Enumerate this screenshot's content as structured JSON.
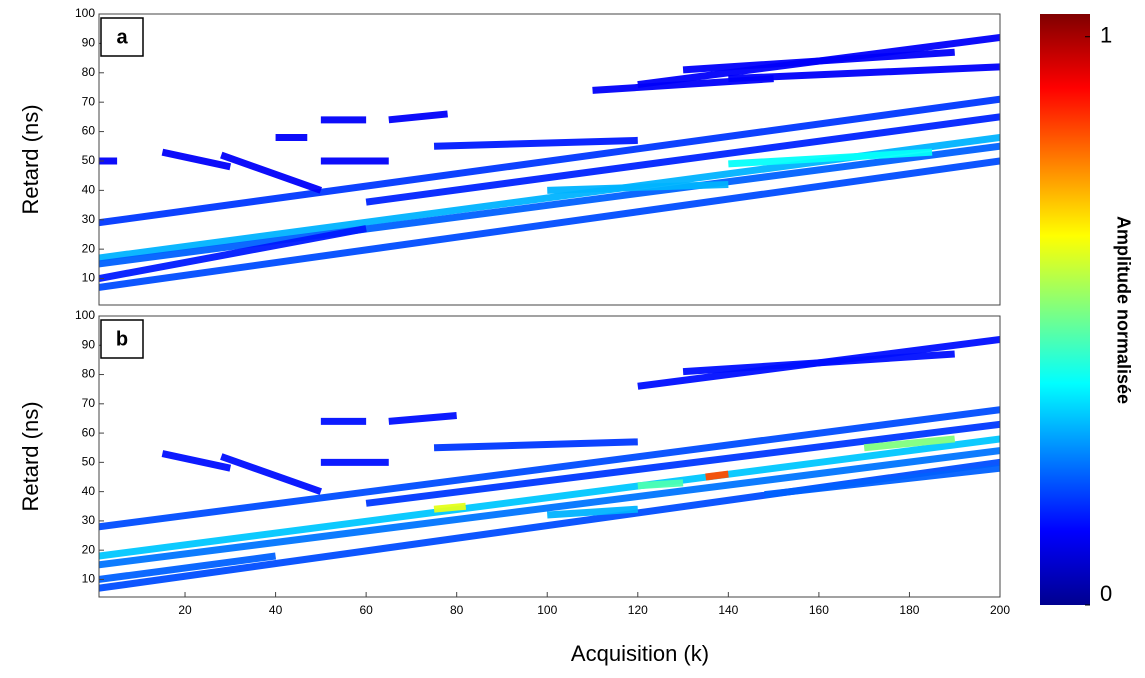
{
  "chart_data": [
    {
      "type": "line",
      "panel_label": "a",
      "ylabel": "Retard (ns)",
      "xlim": [
        1,
        200
      ],
      "ylim": [
        1,
        100
      ],
      "yticks": [
        10,
        20,
        30,
        40,
        50,
        60,
        70,
        80,
        90,
        100
      ],
      "series": [
        {
          "x": [
            1,
            200
          ],
          "values": [
            29,
            71
          ],
          "amplitude": 0.18
        },
        {
          "x": [
            60,
            200
          ],
          "values": [
            36,
            65
          ],
          "amplitude": 0.16
        },
        {
          "x": [
            1,
            200
          ],
          "values": [
            17,
            58
          ],
          "amplitude": 0.3
        },
        {
          "x": [
            1,
            200
          ],
          "values": [
            15,
            55
          ],
          "amplitude": 0.22
        },
        {
          "x": [
            1,
            200
          ],
          "values": [
            7,
            50
          ],
          "amplitude": 0.2
        },
        {
          "x": [
            1,
            60
          ],
          "values": [
            10,
            27
          ],
          "amplitude": 0.15
        },
        {
          "x": [
            120,
            200
          ],
          "values": [
            76,
            92
          ],
          "amplitude": 0.12
        },
        {
          "x": [
            130,
            190
          ],
          "values": [
            81,
            87
          ],
          "amplitude": 0.12
        },
        {
          "x": [
            140,
            200
          ],
          "values": [
            78,
            82
          ],
          "amplitude": 0.12
        },
        {
          "x": [
            110,
            150
          ],
          "values": [
            74,
            78
          ],
          "amplitude": 0.12
        },
        {
          "x": [
            75,
            120
          ],
          "values": [
            55,
            57
          ],
          "amplitude": 0.15
        },
        {
          "x": [
            15,
            30
          ],
          "values": [
            53,
            48
          ],
          "amplitude": 0.12
        },
        {
          "x": [
            28,
            50
          ],
          "values": [
            52,
            40
          ],
          "amplitude": 0.12
        },
        {
          "x": [
            1,
            5
          ],
          "values": [
            50,
            50
          ],
          "amplitude": 0.12
        },
        {
          "x": [
            40,
            47
          ],
          "values": [
            58,
            58
          ],
          "amplitude": 0.12
        },
        {
          "x": [
            50,
            60
          ],
          "values": [
            64,
            64
          ],
          "amplitude": 0.12
        },
        {
          "x": [
            65,
            78
          ],
          "values": [
            64,
            66
          ],
          "amplitude": 0.12
        },
        {
          "x": [
            50,
            65
          ],
          "values": [
            50,
            50
          ],
          "amplitude": 0.12
        },
        {
          "x": [
            100,
            140
          ],
          "values": [
            40,
            42
          ],
          "amplitude": 0.3
        },
        {
          "x": [
            140,
            185
          ],
          "values": [
            49,
            53
          ],
          "amplitude": 0.38
        }
      ]
    },
    {
      "type": "line",
      "panel_label": "b",
      "ylabel": "Retard (ns)",
      "xlabel": "Acquisition (k)",
      "xlim": [
        1,
        200
      ],
      "ylim": [
        4,
        100
      ],
      "yticks": [
        10,
        20,
        30,
        40,
        50,
        60,
        70,
        80,
        90,
        100
      ],
      "xticks": [
        20,
        40,
        60,
        80,
        100,
        120,
        140,
        160,
        180,
        200
      ],
      "series": [
        {
          "x": [
            1,
            200
          ],
          "values": [
            28,
            68
          ],
          "amplitude": 0.2
        },
        {
          "x": [
            60,
            200
          ],
          "values": [
            36,
            63
          ],
          "amplitude": 0.18
        },
        {
          "x": [
            1,
            200
          ],
          "values": [
            18,
            58
          ],
          "amplitude": 0.32
        },
        {
          "x": [
            1,
            200
          ],
          "values": [
            15,
            54
          ],
          "amplitude": 0.24
        },
        {
          "x": [
            1,
            200
          ],
          "values": [
            7,
            50
          ],
          "amplitude": 0.2
        },
        {
          "x": [
            1,
            40
          ],
          "values": [
            10,
            18
          ],
          "amplitude": 0.22
        },
        {
          "x": [
            120,
            200
          ],
          "values": [
            76,
            92
          ],
          "amplitude": 0.14
        },
        {
          "x": [
            130,
            190
          ],
          "values": [
            81,
            87
          ],
          "amplitude": 0.14
        },
        {
          "x": [
            75,
            120
          ],
          "values": [
            55,
            57
          ],
          "amplitude": 0.18
        },
        {
          "x": [
            15,
            30
          ],
          "values": [
            53,
            48
          ],
          "amplitude": 0.14
        },
        {
          "x": [
            28,
            50
          ],
          "values": [
            52,
            40
          ],
          "amplitude": 0.14
        },
        {
          "x": [
            50,
            60
          ],
          "values": [
            64,
            64
          ],
          "amplitude": 0.14
        },
        {
          "x": [
            65,
            80
          ],
          "values": [
            64,
            66
          ],
          "amplitude": 0.14
        },
        {
          "x": [
            50,
            65
          ],
          "values": [
            50,
            50
          ],
          "amplitude": 0.14
        },
        {
          "x": [
            100,
            120
          ],
          "values": [
            32,
            34
          ],
          "amplitude": 0.3
        },
        {
          "x": [
            148,
            200
          ],
          "values": [
            39,
            48
          ],
          "amplitude": 0.22
        },
        {
          "x": [
            75,
            82
          ],
          "values": [
            34,
            35
          ],
          "amplitude": 0.6
        },
        {
          "x": [
            135,
            140
          ],
          "values": [
            45,
            46
          ],
          "amplitude": 0.8
        },
        {
          "x": [
            170,
            190
          ],
          "values": [
            55,
            58
          ],
          "amplitude": 0.5
        },
        {
          "x": [
            120,
            130
          ],
          "values": [
            42,
            43
          ],
          "amplitude": 0.45
        }
      ]
    }
  ],
  "colorbar": {
    "label": "Amplitude normalisée",
    "lim": [
      0,
      1.04
    ],
    "ticks": [
      0,
      1
    ]
  }
}
